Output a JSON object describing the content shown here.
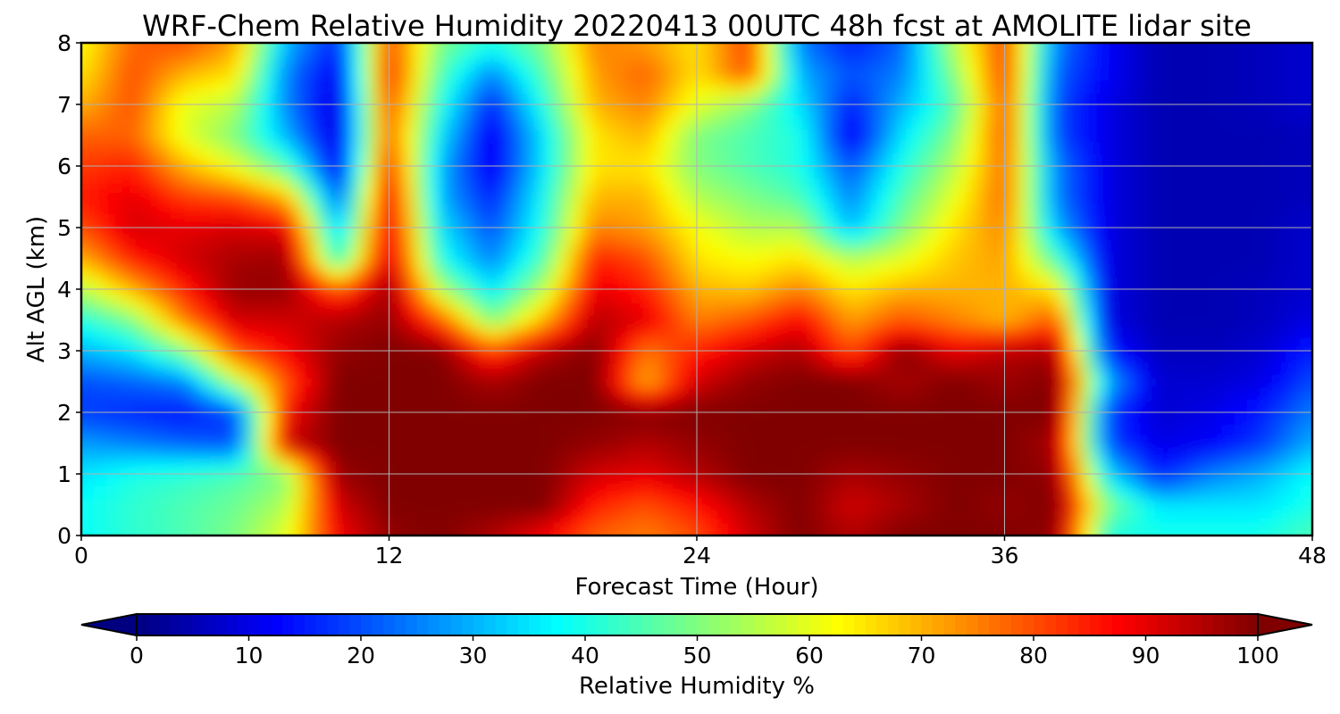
{
  "chart_data": {
    "type": "heatmap",
    "title": "WRF-Chem Relative Humidity 20220413 00UTC 48h fcst at AMOLITE lidar site",
    "xlabel": "Forecast Time (Hour)",
    "ylabel": "Alt AGL (km)",
    "xlim": [
      0,
      48
    ],
    "ylim": [
      0,
      8
    ],
    "x_ticks": [
      0,
      12,
      24,
      36,
      48
    ],
    "y_ticks": [
      0,
      1,
      2,
      3,
      4,
      5,
      6,
      7,
      8
    ],
    "grid": true,
    "colormap": "jet",
    "colorbar": {
      "label": "Relative Humidity %",
      "range": [
        0,
        100
      ],
      "ticks": [
        0,
        10,
        20,
        30,
        40,
        50,
        60,
        70,
        80,
        90,
        100
      ],
      "extend": "both",
      "orientation": "horizontal",
      "placement": "bottom"
    },
    "x": [
      0,
      2,
      4,
      6,
      8,
      10,
      12,
      14,
      16,
      18,
      20,
      22,
      24,
      26,
      28,
      30,
      32,
      34,
      36,
      38,
      40,
      42,
      44,
      46,
      48
    ],
    "y": [
      0,
      0.5,
      1,
      1.5,
      2,
      2.5,
      3,
      3.5,
      4,
      4.5,
      5,
      5.5,
      6,
      6.5,
      7,
      7.5,
      8
    ],
    "z": [
      [
        38,
        42,
        45,
        50,
        60,
        88,
        98,
        100,
        95,
        88,
        78,
        75,
        80,
        92,
        100,
        95,
        100,
        100,
        100,
        98,
        40,
        40,
        40,
        40,
        45
      ],
      [
        38,
        42,
        45,
        48,
        55,
        92,
        100,
        100,
        100,
        100,
        85,
        80,
        86,
        95,
        100,
        92,
        96,
        100,
        98,
        100,
        50,
        35,
        35,
        35,
        40
      ],
      [
        35,
        40,
        42,
        45,
        50,
        98,
        100,
        100,
        100,
        100,
        92,
        90,
        95,
        100,
        100,
        96,
        98,
        100,
        100,
        98,
        35,
        15,
        25,
        30,
        38
      ],
      [
        28,
        25,
        22,
        20,
        92,
        100,
        100,
        100,
        100,
        100,
        98,
        95,
        98,
        100,
        100,
        100,
        100,
        100,
        100,
        96,
        20,
        10,
        12,
        18,
        30
      ],
      [
        18,
        16,
        14,
        18,
        88,
        100,
        100,
        100,
        100,
        100,
        100,
        100,
        100,
        100,
        100,
        100,
        100,
        100,
        100,
        100,
        18,
        8,
        10,
        15,
        25
      ],
      [
        20,
        22,
        25,
        55,
        80,
        100,
        100,
        100,
        96,
        100,
        100,
        70,
        92,
        98,
        100,
        100,
        96,
        100,
        97,
        100,
        30,
        8,
        8,
        10,
        20
      ],
      [
        30,
        35,
        50,
        80,
        88,
        98,
        100,
        100,
        82,
        95,
        100,
        75,
        85,
        92,
        96,
        80,
        100,
        90,
        95,
        96,
        15,
        6,
        6,
        8,
        15
      ],
      [
        40,
        50,
        75,
        92,
        92,
        95,
        98,
        80,
        50,
        70,
        95,
        90,
        75,
        80,
        88,
        72,
        80,
        75,
        70,
        80,
        10,
        5,
        5,
        6,
        10
      ],
      [
        55,
        70,
        85,
        98,
        98,
        80,
        98,
        55,
        35,
        55,
        90,
        85,
        70,
        68,
        75,
        65,
        70,
        70,
        70,
        65,
        10,
        5,
        5,
        6,
        8
      ],
      [
        70,
        85,
        92,
        96,
        97,
        40,
        95,
        40,
        25,
        45,
        85,
        80,
        65,
        62,
        65,
        55,
        60,
        68,
        72,
        45,
        10,
        5,
        5,
        5,
        8
      ],
      [
        80,
        92,
        90,
        92,
        90,
        30,
        92,
        35,
        20,
        40,
        75,
        72,
        62,
        55,
        55,
        30,
        50,
        65,
        75,
        30,
        10,
        5,
        5,
        5,
        8
      ],
      [
        85,
        90,
        82,
        80,
        70,
        20,
        90,
        30,
        15,
        38,
        70,
        70,
        55,
        50,
        45,
        25,
        45,
        60,
        78,
        25,
        10,
        5,
        5,
        5,
        6
      ],
      [
        82,
        85,
        70,
        60,
        45,
        10,
        85,
        30,
        10,
        35,
        65,
        65,
        50,
        45,
        40,
        20,
        40,
        55,
        78,
        25,
        10,
        5,
        5,
        5,
        6
      ],
      [
        78,
        78,
        60,
        50,
        30,
        8,
        80,
        35,
        10,
        35,
        65,
        70,
        50,
        45,
        40,
        10,
        35,
        50,
        80,
        20,
        10,
        5,
        5,
        5,
        6
      ],
      [
        70,
        80,
        60,
        55,
        25,
        8,
        82,
        40,
        15,
        40,
        70,
        75,
        60,
        50,
        35,
        15,
        30,
        45,
        80,
        20,
        10,
        5,
        5,
        6,
        8
      ],
      [
        65,
        80,
        70,
        65,
        25,
        10,
        85,
        45,
        25,
        45,
        72,
        78,
        65,
        80,
        30,
        20,
        25,
        50,
        82,
        22,
        12,
        5,
        5,
        6,
        8
      ],
      [
        62,
        78,
        80,
        72,
        30,
        15,
        82,
        50,
        40,
        50,
        75,
        72,
        65,
        82,
        25,
        15,
        22,
        55,
        82,
        25,
        12,
        5,
        5,
        6,
        8
      ]
    ]
  }
}
